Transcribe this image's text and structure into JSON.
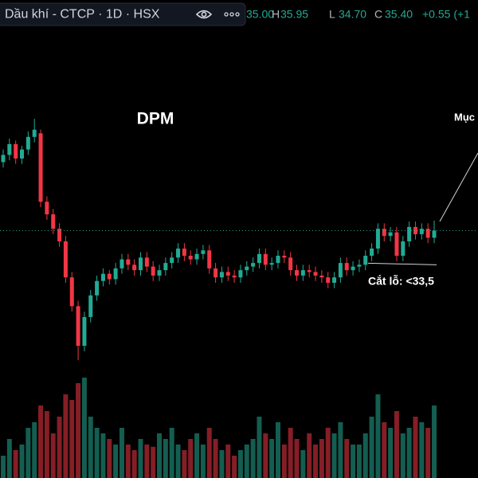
{
  "header": {
    "symbol": "Dầu khí - CTCP · 1D · HSX",
    "open_value": "35.00",
    "quote": [
      {
        "label": "H",
        "value": "35.95"
      },
      {
        "label": "L",
        "value": "34.70"
      },
      {
        "label": "C",
        "value": "35.40"
      }
    ],
    "change": "+0.55 (+1"
  },
  "chart_data": {
    "type": "candlestick",
    "title": "DPM",
    "annotation": "Mục",
    "stop_loss": {
      "value": 33.5,
      "label": "Cắt lỗ: <33,5"
    },
    "up_color": "#22ab94",
    "down_color": "#f23645",
    "ylim": [
      27.5,
      48.2
    ],
    "y2lim": [
      0,
      100
    ],
    "last_price_line": true,
    "open": [
      39.2,
      39.6,
      40.2,
      39.4,
      39.9,
      40.6,
      40.8,
      37.0,
      36.3,
      35.5,
      34.8,
      32.8,
      31.2,
      29.0,
      30.6,
      31.8,
      32.6,
      33.0,
      32.7,
      33.3,
      33.8,
      33.5,
      33.2,
      33.9,
      33.4,
      32.9,
      33.2,
      33.6,
      33.9,
      34.4,
      34.0,
      33.8,
      34.1,
      34.3,
      33.3,
      32.8,
      33.1,
      32.9,
      32.8,
      33.2,
      33.4,
      33.6,
      34.1,
      33.5,
      33.6,
      34.0,
      33.9,
      33.2,
      32.9,
      33.2,
      33.1,
      32.9,
      32.8,
      32.5,
      32.8,
      33.6,
      33.2,
      33.4,
      33.5,
      34.0,
      34.4,
      35.5,
      35.1,
      35.3,
      34.0,
      34.8,
      35.6,
      35.2,
      35.5,
      35.0
    ],
    "high": [
      39.9,
      40.5,
      40.4,
      40.1,
      40.9,
      41.6,
      41.0,
      37.3,
      36.6,
      35.8,
      35.1,
      33.1,
      31.5,
      30.9,
      32.1,
      32.9,
      33.3,
      33.2,
      33.6,
      34.1,
      34.1,
      33.8,
      34.2,
      34.2,
      33.7,
      33.5,
      33.9,
      34.2,
      34.7,
      34.7,
      34.3,
      34.4,
      34.6,
      34.6,
      33.6,
      33.4,
      33.4,
      33.2,
      33.5,
      33.7,
      33.9,
      34.4,
      34.4,
      33.9,
      34.3,
      34.3,
      34.2,
      33.5,
      33.5,
      33.5,
      33.4,
      33.2,
      33.1,
      33.1,
      33.9,
      33.9,
      33.7,
      33.8,
      34.3,
      34.7,
      35.8,
      35.8,
      35.6,
      35.6,
      35.1,
      35.9,
      35.9,
      35.8,
      35.8,
      35.95
    ],
    "low": [
      38.9,
      39.3,
      39.1,
      39.1,
      39.6,
      40.3,
      36.7,
      36.0,
      35.2,
      34.5,
      32.5,
      30.9,
      28.2,
      28.7,
      30.3,
      31.5,
      32.3,
      32.4,
      32.4,
      33.0,
      33.2,
      32.9,
      32.9,
      33.1,
      32.6,
      32.6,
      32.9,
      33.3,
      33.6,
      33.7,
      33.5,
      33.5,
      33.8,
      33.0,
      32.5,
      32.5,
      32.6,
      32.5,
      32.5,
      32.9,
      33.1,
      33.3,
      33.2,
      33.2,
      33.3,
      33.6,
      32.9,
      32.6,
      32.6,
      32.8,
      32.6,
      32.5,
      32.2,
      32.2,
      32.5,
      32.9,
      32.9,
      33.1,
      33.2,
      33.7,
      34.1,
      34.8,
      34.8,
      33.7,
      33.7,
      34.5,
      34.9,
      34.9,
      34.7,
      34.7
    ],
    "close": [
      39.6,
      40.2,
      39.4,
      39.9,
      40.6,
      41.0,
      37.0,
      36.3,
      35.5,
      34.8,
      32.8,
      31.2,
      29.0,
      30.6,
      31.8,
      32.6,
      33.0,
      32.7,
      33.3,
      33.8,
      33.5,
      33.2,
      33.9,
      33.4,
      32.9,
      33.2,
      33.6,
      33.9,
      34.4,
      34.0,
      33.8,
      34.1,
      34.3,
      33.3,
      32.8,
      33.1,
      32.9,
      32.8,
      33.2,
      33.4,
      33.6,
      34.1,
      33.5,
      33.6,
      34.0,
      33.9,
      33.2,
      32.9,
      33.2,
      33.1,
      32.9,
      32.8,
      32.5,
      32.8,
      33.6,
      33.2,
      33.4,
      33.5,
      34.0,
      34.4,
      35.5,
      35.1,
      35.3,
      34.0,
      34.8,
      35.6,
      35.2,
      35.5,
      35.0,
      35.4
    ],
    "volume": [
      20,
      35,
      25,
      30,
      45,
      50,
      65,
      60,
      40,
      55,
      75,
      70,
      85,
      90,
      55,
      45,
      40,
      35,
      30,
      45,
      30,
      25,
      35,
      30,
      28,
      40,
      35,
      45,
      30,
      25,
      35,
      40,
      30,
      45,
      35,
      25,
      30,
      20,
      25,
      30,
      35,
      55,
      40,
      35,
      50,
      30,
      45,
      35,
      25,
      40,
      30,
      35,
      45,
      40,
      50,
      35,
      30,
      30,
      40,
      55,
      75,
      50,
      45,
      60,
      40,
      45,
      55,
      50,
      45,
      65
    ]
  }
}
